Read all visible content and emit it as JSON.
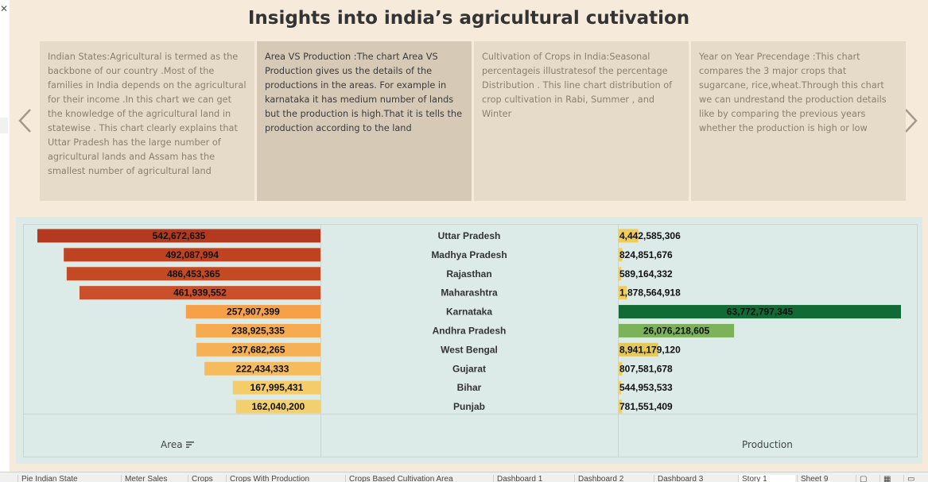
{
  "title": "Insights into india’s agricultural cutivation",
  "story_points": [
    {
      "text": "Indian States:Agricultural is termed as the backbone of our country .Most of the families in India depends on the agricultural for their income .In this chart we can get the knowledge of the agricultural land in statewise . This chart clearly explains that Uttar Pradesh has the large number of agricultural lands and Assam has the smallest number of  agricultural land"
    },
    {
      "text": "Area VS Production :The chart Area VS Production gives us the details of the productions in the areas. For example in karnataka it has medium number of lands but the production is high.That it is tells the production according to the land"
    },
    {
      "text": "Cultivation of Crops in India:Seasonal percentageis  illustratesof  the percentage Distribution .  This line chart distribution of crop cultivation in Rabi, Summer , and Winter"
    },
    {
      "text": "Year on Year Precendage :This chart compares the 3 major crops that sugarcane, rice,wheat.Through this chart we can undrestand the production details like by comparing the previous years whether the production is high or low"
    }
  ],
  "nav": {
    "prev_icon": "chevron-left-icon",
    "next_icon": "chevron-right-icon"
  },
  "chart_data": {
    "type": "bar",
    "categories": [
      "Uttar Pradesh",
      "Madhya Pradesh",
      "Rajasthan",
      "Maharashtra",
      "Karnataka",
      "Andhra Pradesh",
      "West Bengal",
      "Gujarat",
      "Bihar",
      "Punjab"
    ],
    "series": [
      {
        "name": "Area",
        "values": [
          542672635,
          492087994,
          486453365,
          461939552,
          257907399,
          238925335,
          237682265,
          222434333,
          167995431,
          162040200
        ],
        "labels": [
          "542,672,635",
          "492,087,994",
          "486,453,365",
          "461,939,552",
          "257,907,399",
          "238,925,335",
          "237,682,265",
          "222,434,333",
          "167,995,431",
          "162,040,200"
        ]
      },
      {
        "name": "Production",
        "values": [
          4442585306,
          824851676,
          589164332,
          1878564918,
          63772797345,
          26076218605,
          8941179120,
          807581678,
          544953533,
          781551409
        ],
        "labels": [
          "4,442,585,306",
          "824,851,676",
          "589,164,332",
          "1,878,564,918",
          "63,772,797,345",
          "26,076,218,605",
          "8,941,179,120",
          "807,581,678",
          "544,953,533",
          "781,551,409"
        ]
      }
    ],
    "xlabel_left": "Area",
    "xlabel_right": "Production",
    "area_colors": [
      "#b5391f",
      "#bf4221",
      "#c44a23",
      "#c9502a",
      "#f6a04a",
      "#f7ab50",
      "#f6b157",
      "#f6bb5d",
      "#f4cc6a",
      "#f3d06e"
    ],
    "production_colors": [
      "#f0cc5a",
      "#f0d060",
      "#f0d060",
      "#f0cc5a",
      "#126a35",
      "#7cb35a",
      "#e5c957",
      "#f0d060",
      "#f0d060",
      "#f0d060"
    ]
  },
  "sheet_tabs": [
    "Pie Indian State",
    "Meter Sales",
    "Crops",
    "Crops With Production",
    "Crops Based Cultivation Area",
    "Dashboard 1",
    "Dashboard 2",
    "Dashboard 3",
    "Story 1",
    "Sheet 9"
  ]
}
